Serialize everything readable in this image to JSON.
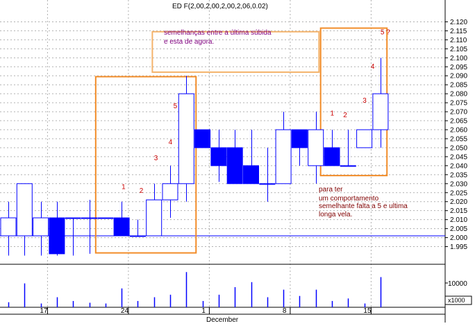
{
  "header": {
    "title": "ED F(2,00,2,00,2,00,2,06,0.02)"
  },
  "colors": {
    "up_candle": "#0000ff",
    "down_candle": "#0000ff",
    "wick": "#0000ff",
    "highlight_box": "#f28c28",
    "note_box": "#f4b36b",
    "volume": "#0000ff",
    "grid": "#b0b0b0",
    "reference_line": "#0000ff"
  },
  "chart_data": {
    "type": "candlestick",
    "y_axis": {
      "min": 1.99,
      "max": 2.125,
      "ticks": [
        "2.120",
        "2.115",
        "2.110",
        "2.105",
        "2.100",
        "2.095",
        "2.090",
        "2.085",
        "2.080",
        "2.075",
        "2.070",
        "2.065",
        "2.060",
        "2.055",
        "2.050",
        "2.045",
        "2.040",
        "2.035",
        "2.030",
        "2.025",
        "2.020",
        "2.015",
        "2.010",
        "2.005",
        "2.000",
        "1.995"
      ]
    },
    "reference_line": 2.001,
    "x_axis": {
      "day_labels": [
        {
          "label": "17",
          "index": 2.4
        },
        {
          "label": "24",
          "index": 7.4
        },
        {
          "label": "1",
          "index": 12.4
        },
        {
          "label": "8",
          "index": 17.4
        },
        {
          "label": "15",
          "index": 22.4
        }
      ],
      "month_label": "December"
    },
    "candles": [
      {
        "o": 2.001,
        "h": 2.02,
        "l": 1.99,
        "c": 2.011,
        "vol": 2000
      },
      {
        "o": 2.001,
        "h": 2.03,
        "l": 1.99,
        "c": 2.03,
        "vol": 9500
      },
      {
        "o": 2.001,
        "h": 2.02,
        "l": 1.99,
        "c": 2.011,
        "vol": 1500
      },
      {
        "o": 2.011,
        "h": 2.02,
        "l": 1.99,
        "c": 1.991,
        "vol": 4000
      },
      {
        "o": 2.011,
        "h": 2.011,
        "l": 1.99,
        "c": 2.011,
        "vol": 2500
      },
      {
        "o": 2.011,
        "h": 2.021,
        "l": 1.991,
        "c": 2.011,
        "vol": 1800
      },
      {
        "o": 2.011,
        "h": 2.011,
        "l": 2.011,
        "c": 2.011,
        "vol": 1500
      },
      {
        "o": 2.011,
        "h": 2.02,
        "l": 2.001,
        "c": 2.001,
        "vol": 7500
      },
      {
        "o": 2.001,
        "h": 2.01,
        "l": 2.001,
        "c": 2.001,
        "vol": 2500
      },
      {
        "o": 2.001,
        "h": 2.03,
        "l": 2.001,
        "c": 2.021,
        "vol": 4000
      },
      {
        "o": 2.021,
        "h": 2.04,
        "l": 2.011,
        "c": 2.03,
        "vol": 5000
      },
      {
        "o": 2.03,
        "h": 2.09,
        "l": 2.02,
        "c": 2.08,
        "vol": 14000
      },
      {
        "o": 2.06,
        "h": 2.06,
        "l": 2.05,
        "c": 2.05,
        "vol": 2500
      },
      {
        "o": 2.05,
        "h": 2.06,
        "l": 2.031,
        "c": 2.04,
        "vol": 5000
      },
      {
        "o": 2.05,
        "h": 2.06,
        "l": 2.03,
        "c": 2.03,
        "vol": 8000
      },
      {
        "o": 2.04,
        "h": 2.06,
        "l": 2.03,
        "c": 2.03,
        "vol": 10000
      },
      {
        "o": 2.03,
        "h": 2.05,
        "l": 2.02,
        "c": 2.03,
        "vol": 4000
      },
      {
        "o": 2.03,
        "h": 2.07,
        "l": 2.03,
        "c": 2.06,
        "vol": 7000
      },
      {
        "o": 2.06,
        "h": 2.06,
        "l": 2.04,
        "c": 2.05,
        "vol": 4500
      },
      {
        "o": 2.04,
        "h": 2.07,
        "l": 2.03,
        "c": 2.06,
        "vol": 7000
      },
      {
        "o": 2.05,
        "h": 2.06,
        "l": 2.04,
        "c": 2.04,
        "vol": 2500
      },
      {
        "o": 2.04,
        "h": 2.06,
        "l": 2.04,
        "c": 2.04,
        "vol": 3500
      },
      {
        "o": 2.05,
        "h": 2.06,
        "l": 2.05,
        "c": 2.06,
        "vol": 1500
      },
      {
        "o": 2.06,
        "h": 2.1,
        "l": 2.05,
        "c": 2.08,
        "vol": 12000
      }
    ],
    "volume_axis": {
      "max": 16000,
      "tick": "10000",
      "multiplier": "x1000"
    },
    "highlight_boxes": [
      {
        "i0": 5.4,
        "i1": 11.6,
        "ylo": 1.9915,
        "yhi": 2.0895
      },
      {
        "i0": 19.3,
        "i1": 23.4,
        "ylo": 2.0345,
        "yhi": 2.1165
      }
    ],
    "note_box": {
      "i0": 8.9,
      "i1": 19.2,
      "ylo": 2.092,
      "yhi": 2.1145
    },
    "annotations": {
      "note_top": [
        "semelhanças entre a última súbida",
        "e esta de agora."
      ],
      "note_bottom": [
        "para ter",
        "um comportamento",
        "semelhante falta a 5 e ultima",
        "longa vela."
      ]
    },
    "wave_labels": [
      {
        "text": "1",
        "i": 7.0,
        "y": 2.027
      },
      {
        "text": "2",
        "i": 8.1,
        "y": 2.025
      },
      {
        "text": "3",
        "i": 9.0,
        "y": 2.043
      },
      {
        "text": "4",
        "i": 9.9,
        "y": 2.052
      },
      {
        "text": "5",
        "i": 10.2,
        "y": 2.072
      },
      {
        "text": "1",
        "i": 19.9,
        "y": 2.068
      },
      {
        "text": "2",
        "i": 20.7,
        "y": 2.067
      },
      {
        "text": "3",
        "i": 21.9,
        "y": 2.075
      },
      {
        "text": "4",
        "i": 22.4,
        "y": 2.094
      },
      {
        "text": "5 ?",
        "i": 23.0,
        "y": 2.113
      }
    ]
  }
}
